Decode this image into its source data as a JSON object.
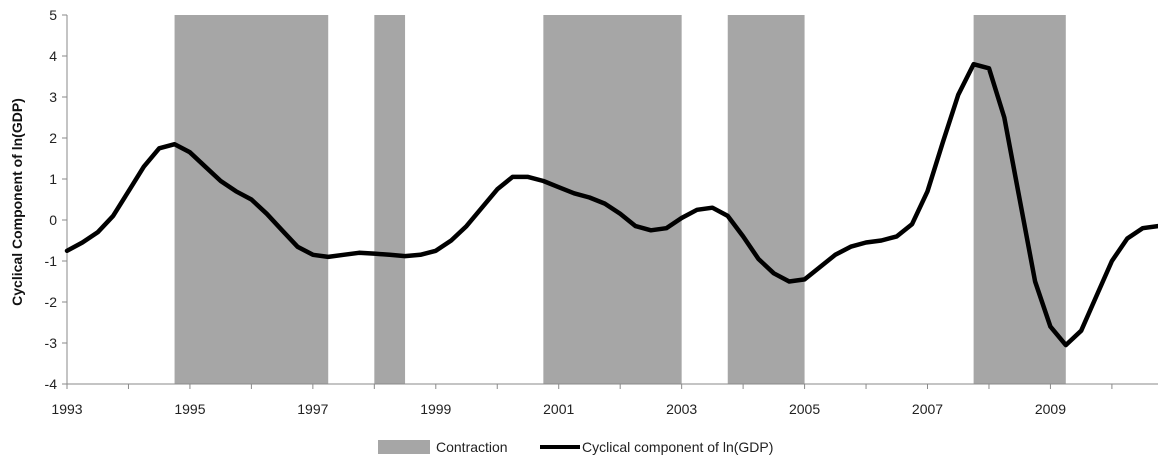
{
  "chart_data": {
    "type": "line",
    "title": "",
    "xlabel": "",
    "ylabel": "Cyclical Component of ln(GDP)",
    "ylim": [
      -4,
      5
    ],
    "xlim": [
      1993.0,
      2010.75
    ],
    "yticks": [
      "5",
      "4",
      "3",
      "2",
      "1",
      "0",
      "-1",
      "-2",
      "-3",
      "-4"
    ],
    "xticks": [
      "1993",
      "1995",
      "1997",
      "1999",
      "2001",
      "2003",
      "2005",
      "2007",
      "2009"
    ],
    "grid": false,
    "legend": {
      "position": "bottom",
      "entries": [
        "Contraction",
        "Cyclical component of ln(GDP)"
      ]
    },
    "colors": {
      "contraction": "#a6a6a6",
      "line": "#000000"
    },
    "contractions": [
      {
        "start": 1994.75,
        "end": 1997.25
      },
      {
        "start": 1998.0,
        "end": 1998.5
      },
      {
        "start": 2000.75,
        "end": 2003.0
      },
      {
        "start": 2003.75,
        "end": 2005.0
      },
      {
        "start": 2007.75,
        "end": 2009.25
      }
    ],
    "series": [
      {
        "name": "Cyclical component of ln(GDP)",
        "type": "line",
        "x": [
          1993.0,
          1993.25,
          1993.5,
          1993.75,
          1994.0,
          1994.25,
          1994.5,
          1994.75,
          1995.0,
          1995.25,
          1995.5,
          1995.75,
          1996.0,
          1996.25,
          1996.5,
          1996.75,
          1997.0,
          1997.25,
          1997.5,
          1997.75,
          1998.0,
          1998.25,
          1998.5,
          1998.75,
          1999.0,
          1999.25,
          1999.5,
          1999.75,
          2000.0,
          2000.25,
          2000.5,
          2000.75,
          2001.0,
          2001.25,
          2001.5,
          2001.75,
          2002.0,
          2002.25,
          2002.5,
          2002.75,
          2003.0,
          2003.25,
          2003.5,
          2003.75,
          2004.0,
          2004.25,
          2004.5,
          2004.75,
          2005.0,
          2005.25,
          2005.5,
          2005.75,
          2006.0,
          2006.25,
          2006.5,
          2006.75,
          2007.0,
          2007.25,
          2007.5,
          2007.75,
          2008.0,
          2008.25,
          2008.5,
          2008.75,
          2009.0,
          2009.25,
          2009.5,
          2009.75,
          2010.0,
          2010.25,
          2010.5,
          2010.75
        ],
        "values": [
          -0.75,
          -0.55,
          -0.3,
          0.1,
          0.7,
          1.3,
          1.75,
          1.85,
          1.65,
          1.3,
          0.95,
          0.7,
          0.5,
          0.15,
          -0.25,
          -0.65,
          -0.85,
          -0.9,
          -0.85,
          -0.8,
          -0.82,
          -0.85,
          -0.88,
          -0.85,
          -0.75,
          -0.5,
          -0.15,
          0.3,
          0.75,
          1.05,
          1.05,
          0.95,
          0.8,
          0.65,
          0.55,
          0.4,
          0.15,
          -0.15,
          -0.25,
          -0.2,
          0.05,
          0.25,
          0.3,
          0.1,
          -0.4,
          -0.95,
          -1.3,
          -1.5,
          -1.45,
          -1.15,
          -0.85,
          -0.65,
          -0.55,
          -0.5,
          -0.4,
          -0.1,
          0.7,
          1.9,
          3.05,
          3.8,
          3.7,
          2.5,
          0.5,
          -1.5,
          -2.6,
          -3.05,
          -2.7,
          -1.85,
          -1.0,
          -0.45,
          -0.2,
          -0.15
        ]
      }
    ]
  }
}
